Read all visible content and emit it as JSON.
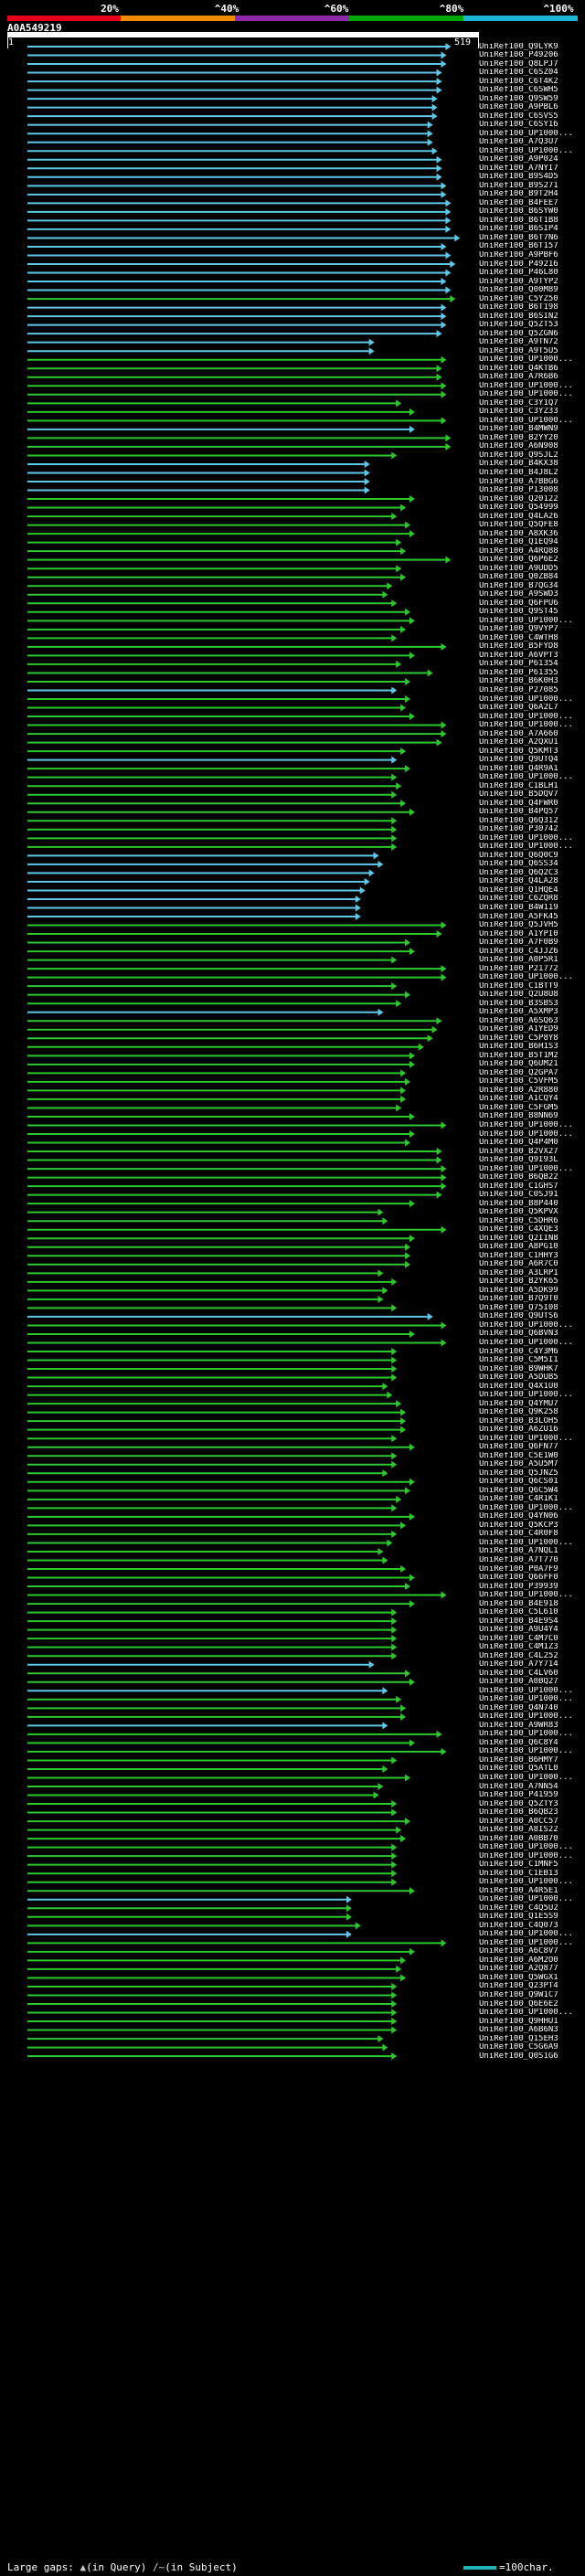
{
  "scale": {
    "labels": [
      "20%",
      "^40%",
      "^60%",
      "^80%",
      "^100%"
    ],
    "colors": [
      "#e8001c",
      "#f08a00",
      "#8e2aa8",
      "#00a800",
      "#1bb6d6"
    ]
  },
  "query": {
    "title": "A0A549219",
    "start": "1",
    "end": "519"
  },
  "footer": {
    "large_gaps_label": "Large gaps:",
    "in_query_mark": "▲",
    "in_query_label": "(in Query)",
    "in_subject_mark": "/~",
    "in_subject_label": "(in Subject)",
    "legend_label": "=100char."
  },
  "colors": {
    "cyan": "#5fc8e8",
    "green": "#2ec82e",
    "legend": "#1fb5b8",
    "ruler": "#ffffff"
  },
  "hits": [
    {
      "id": "UniRef100_Q9LYK9",
      "end": 0.94,
      "c": "cyan"
    },
    {
      "id": "UniRef100_P49206",
      "end": 0.93,
      "c": "cyan"
    },
    {
      "id": "UniRef100_Q8LPJ7",
      "end": 0.93,
      "c": "cyan"
    },
    {
      "id": "UniRef100_C6SZ04",
      "end": 0.92,
      "c": "cyan"
    },
    {
      "id": "UniRef100_C6T4K2",
      "end": 0.92,
      "c": "cyan"
    },
    {
      "id": "UniRef100_C6SWH5",
      "end": 0.92,
      "c": "cyan"
    },
    {
      "id": "UniRef100_Q9SW59",
      "end": 0.91,
      "c": "cyan"
    },
    {
      "id": "UniRef100_A9PBL6",
      "end": 0.91,
      "c": "cyan"
    },
    {
      "id": "UniRef100_C6SVS5",
      "end": 0.91,
      "c": "cyan"
    },
    {
      "id": "UniRef100_C6SY16",
      "end": 0.9,
      "c": "cyan"
    },
    {
      "id": "UniRef100_UP1000...",
      "end": 0.9,
      "c": "cyan"
    },
    {
      "id": "UniRef100_A7Q3U7",
      "end": 0.9,
      "c": "cyan"
    },
    {
      "id": "UniRef100_UP1000...",
      "end": 0.91,
      "c": "cyan"
    },
    {
      "id": "UniRef100_A9P024",
      "end": 0.92,
      "c": "cyan"
    },
    {
      "id": "UniRef100_A7NYI7",
      "end": 0.92,
      "c": "cyan"
    },
    {
      "id": "UniRef100_B9S4D5",
      "end": 0.92,
      "c": "cyan"
    },
    {
      "id": "UniRef100_B9S271",
      "end": 0.93,
      "c": "cyan"
    },
    {
      "id": "UniRef100_B9T2H4",
      "end": 0.93,
      "c": "cyan"
    },
    {
      "id": "UniRef100_B4FEE7",
      "end": 0.94,
      "c": "cyan"
    },
    {
      "id": "UniRef100_B6SYW0",
      "end": 0.94,
      "c": "cyan"
    },
    {
      "id": "UniRef100_B6T1B8",
      "end": 0.94,
      "c": "cyan"
    },
    {
      "id": "UniRef100_B6SIP4",
      "end": 0.94,
      "c": "cyan"
    },
    {
      "id": "UniRef100_B6T7N6",
      "end": 0.96,
      "c": "cyan"
    },
    {
      "id": "UniRef100_B6T157",
      "end": 0.93,
      "c": "cyan"
    },
    {
      "id": "UniRef100_A9PBF6",
      "end": 0.94,
      "c": "cyan"
    },
    {
      "id": "UniRef100_P49216",
      "end": 0.95,
      "c": "cyan"
    },
    {
      "id": "UniRef100_P46L80",
      "end": 0.94,
      "c": "cyan"
    },
    {
      "id": "UniRef100_A9TYP2",
      "end": 0.93,
      "c": "cyan"
    },
    {
      "id": "UniRef100_Q00M89",
      "end": 0.94,
      "c": "cyan"
    },
    {
      "id": "UniRef100_C5YZ50",
      "end": 0.95,
      "c": "green"
    },
    {
      "id": "UniRef100_B6T198",
      "end": 0.93,
      "c": "cyan"
    },
    {
      "id": "UniRef100_B6SIN2",
      "end": 0.93,
      "c": "cyan"
    },
    {
      "id": "UniRef100_Q5ZT53",
      "end": 0.93,
      "c": "cyan"
    },
    {
      "id": "UniRef100_Q5ZGN6",
      "end": 0.92,
      "c": "cyan"
    },
    {
      "id": "UniRef100_A9TN72",
      "end": 0.77,
      "c": "cyan"
    },
    {
      "id": "UniRef100_A9T5U5",
      "end": 0.77,
      "c": "cyan"
    },
    {
      "id": "UniRef100_UP1000...",
      "end": 0.93,
      "c": "green"
    },
    {
      "id": "UniRef100_Q4KTB6",
      "end": 0.92,
      "c": "green"
    },
    {
      "id": "UniRef100_A7R6B6",
      "end": 0.92,
      "c": "green"
    },
    {
      "id": "UniRef100_UP1000...",
      "end": 0.93,
      "c": "green"
    },
    {
      "id": "UniRef100_UP1000...",
      "end": 0.93,
      "c": "green"
    },
    {
      "id": "UniRef100_C3Y1Q7",
      "end": 0.83,
      "c": "green"
    },
    {
      "id": "UniRef100_C3YZ33",
      "end": 0.86,
      "c": "green"
    },
    {
      "id": "UniRef100_UP1000...",
      "end": 0.93,
      "c": "green"
    },
    {
      "id": "UniRef100_B4MWN9",
      "end": 0.86,
      "c": "cyan"
    },
    {
      "id": "UniRef100_B2YY20",
      "end": 0.94,
      "c": "green"
    },
    {
      "id": "UniRef100_A6N908",
      "end": 0.94,
      "c": "green"
    },
    {
      "id": "UniRef100_Q9SJL2",
      "end": 0.82,
      "c": "green"
    },
    {
      "id": "UniRef100_B4KX38",
      "end": 0.76,
      "c": "cyan"
    },
    {
      "id": "UniRef100_B4J8L2",
      "end": 0.76,
      "c": "cyan"
    },
    {
      "id": "UniRef100_A7BBG6",
      "end": 0.76,
      "c": "cyan"
    },
    {
      "id": "UniRef100_P13008",
      "end": 0.76,
      "c": "cyan"
    },
    {
      "id": "UniRef100_Q20122",
      "end": 0.86,
      "c": "green"
    },
    {
      "id": "UniRef100_Q54999",
      "end": 0.84,
      "c": "green"
    },
    {
      "id": "UniRef100_Q4LA26",
      "end": 0.82,
      "c": "green"
    },
    {
      "id": "UniRef100_Q5QFE8",
      "end": 0.85,
      "c": "green"
    },
    {
      "id": "UniRef100_A8XK36",
      "end": 0.86,
      "c": "green"
    },
    {
      "id": "UniRef100_Q1EQ94",
      "end": 0.83,
      "c": "green"
    },
    {
      "id": "UniRef100_A4RQ88",
      "end": 0.84,
      "c": "green"
    },
    {
      "id": "UniRef100_Q6P6E2",
      "end": 0.94,
      "c": "green"
    },
    {
      "id": "UniRef100_A9UDD5",
      "end": 0.83,
      "c": "green"
    },
    {
      "id": "UniRef100_Q0ZB84",
      "end": 0.84,
      "c": "green"
    },
    {
      "id": "UniRef100_B7QG34",
      "end": 0.81,
      "c": "green"
    },
    {
      "id": "UniRef100_A9SWD3",
      "end": 0.8,
      "c": "green"
    },
    {
      "id": "UniRef100_Q6FPU6",
      "end": 0.82,
      "c": "green"
    },
    {
      "id": "UniRef100_Q9ST45",
      "end": 0.85,
      "c": "green"
    },
    {
      "id": "UniRef100_UP1000...",
      "end": 0.86,
      "c": "green"
    },
    {
      "id": "UniRef100_Q9VYP7",
      "end": 0.84,
      "c": "green"
    },
    {
      "id": "UniRef100_C4WTH8",
      "end": 0.82,
      "c": "green"
    },
    {
      "id": "UniRef100_B5FYD8",
      "end": 0.93,
      "c": "green"
    },
    {
      "id": "UniRef100_A6VPT3",
      "end": 0.86,
      "c": "green"
    },
    {
      "id": "UniRef100_P61354",
      "end": 0.83,
      "c": "green"
    },
    {
      "id": "UniRef100_P61355",
      "end": 0.9,
      "c": "green"
    },
    {
      "id": "UniRef100_B6K0H3",
      "end": 0.85,
      "c": "green"
    },
    {
      "id": "UniRef100_P27085",
      "end": 0.82,
      "c": "cyan"
    },
    {
      "id": "UniRef100_UP1000...",
      "end": 0.85,
      "c": "green"
    },
    {
      "id": "UniRef100_Q6A2L7",
      "end": 0.84,
      "c": "green"
    },
    {
      "id": "UniRef100_UP1000...",
      "end": 0.86,
      "c": "green"
    },
    {
      "id": "UniRef100_UP1000...",
      "end": 0.93,
      "c": "green"
    },
    {
      "id": "UniRef100_A7A660",
      "end": 0.93,
      "c": "green"
    },
    {
      "id": "UniRef100_A2QXU1",
      "end": 0.92,
      "c": "green"
    },
    {
      "id": "UniRef100_Q5KMT3",
      "end": 0.84,
      "c": "green"
    },
    {
      "id": "UniRef100_Q9UTQ4",
      "end": 0.82,
      "c": "cyan"
    },
    {
      "id": "UniRef100_Q4R9A1",
      "end": 0.85,
      "c": "green"
    },
    {
      "id": "UniRef100_UP1000...",
      "end": 0.82,
      "c": "green"
    },
    {
      "id": "UniRef100_C1BLH1",
      "end": 0.83,
      "c": "green"
    },
    {
      "id": "UniRef100_B5DQV7",
      "end": 0.82,
      "c": "green"
    },
    {
      "id": "UniRef100_Q4FWR0",
      "end": 0.84,
      "c": "green"
    },
    {
      "id": "UniRef100_B4PQ57",
      "end": 0.86,
      "c": "green"
    },
    {
      "id": "UniRef100_Q6Q312",
      "end": 0.82,
      "c": "green"
    },
    {
      "id": "UniRef100_P30742",
      "end": 0.82,
      "c": "green"
    },
    {
      "id": "UniRef100_UP1000...",
      "end": 0.82,
      "c": "green"
    },
    {
      "id": "UniRef100_UP1000...",
      "end": 0.82,
      "c": "green"
    },
    {
      "id": "UniRef100_Q6Q0C9",
      "end": 0.78,
      "c": "cyan"
    },
    {
      "id": "UniRef100_Q6SS34",
      "end": 0.79,
      "c": "cyan"
    },
    {
      "id": "UniRef100_Q6Q2C3",
      "end": 0.77,
      "c": "cyan"
    },
    {
      "id": "UniRef100_Q4LA28",
      "end": 0.76,
      "c": "cyan"
    },
    {
      "id": "UniRef100_Q1HQE4",
      "end": 0.75,
      "c": "cyan"
    },
    {
      "id": "UniRef100_C6ZQR8",
      "end": 0.74,
      "c": "cyan"
    },
    {
      "id": "UniRef100_B4W119",
      "end": 0.74,
      "c": "cyan"
    },
    {
      "id": "UniRef100_A5FK45",
      "end": 0.74,
      "c": "cyan"
    },
    {
      "id": "UniRef100_Q5JVH5",
      "end": 0.93,
      "c": "green"
    },
    {
      "id": "UniRef100_A1YPI0",
      "end": 0.92,
      "c": "green"
    },
    {
      "id": "UniRef100_A7F0B9",
      "end": 0.85,
      "c": "green"
    },
    {
      "id": "UniRef100_C4JJZ6",
      "end": 0.86,
      "c": "green"
    },
    {
      "id": "UniRef100_A0P5R1",
      "end": 0.82,
      "c": "green"
    },
    {
      "id": "UniRef100_P21772",
      "end": 0.93,
      "c": "green"
    },
    {
      "id": "UniRef100_UP1000...",
      "end": 0.93,
      "c": "green"
    },
    {
      "id": "UniRef100_C1BTT9",
      "end": 0.82,
      "c": "green"
    },
    {
      "id": "UniRef100_Q2U8U8",
      "end": 0.85,
      "c": "green"
    },
    {
      "id": "UniRef100_B3SBS3",
      "end": 0.83,
      "c": "green"
    },
    {
      "id": "UniRef100_A5XMP3",
      "end": 0.79,
      "c": "cyan"
    },
    {
      "id": "UniRef100_A6SQ63",
      "end": 0.92,
      "c": "green"
    },
    {
      "id": "UniRef100_A1YED9",
      "end": 0.91,
      "c": "green"
    },
    {
      "id": "UniRef100_C5P8Y8",
      "end": 0.9,
      "c": "green"
    },
    {
      "id": "UniRef100_B6H1S3",
      "end": 0.88,
      "c": "green"
    },
    {
      "id": "UniRef100_B5T1M2",
      "end": 0.86,
      "c": "green"
    },
    {
      "id": "UniRef100_Q6UM21",
      "end": 0.86,
      "c": "green"
    },
    {
      "id": "UniRef100_Q2GPA7",
      "end": 0.84,
      "c": "green"
    },
    {
      "id": "UniRef100_C5VFM5",
      "end": 0.85,
      "c": "green"
    },
    {
      "id": "UniRef100_A2R880",
      "end": 0.84,
      "c": "green"
    },
    {
      "id": "UniRef100_A1CQY4",
      "end": 0.84,
      "c": "green"
    },
    {
      "id": "UniRef100_C5FGM5",
      "end": 0.83,
      "c": "green"
    },
    {
      "id": "UniRef100_B8NN69",
      "end": 0.86,
      "c": "green"
    },
    {
      "id": "UniRef100_UP1000...",
      "end": 0.93,
      "c": "green"
    },
    {
      "id": "UniRef100_UP1000...",
      "end": 0.86,
      "c": "green"
    },
    {
      "id": "UniRef100_Q4P4M0",
      "end": 0.85,
      "c": "green"
    },
    {
      "id": "UniRef100_B2VX27",
      "end": 0.92,
      "c": "green"
    },
    {
      "id": "UniRef100_Q9I93L",
      "end": 0.92,
      "c": "green"
    },
    {
      "id": "UniRef100_UP1000...",
      "end": 0.93,
      "c": "green"
    },
    {
      "id": "UniRef100_B6QB22",
      "end": 0.93,
      "c": "green"
    },
    {
      "id": "UniRef100_C1GHS7",
      "end": 0.93,
      "c": "green"
    },
    {
      "id": "UniRef100_C0SJ91",
      "end": 0.92,
      "c": "green"
    },
    {
      "id": "UniRef100_B8P440",
      "end": 0.86,
      "c": "green"
    },
    {
      "id": "UniRef100_Q5KPVX",
      "end": 0.79,
      "c": "green"
    },
    {
      "id": "UniRef100_C5DHR6",
      "end": 0.8,
      "c": "green"
    },
    {
      "id": "UniRef100_C4XQE3",
      "end": 0.93,
      "c": "green"
    },
    {
      "id": "UniRef100_Q2IIN8",
      "end": 0.86,
      "c": "green"
    },
    {
      "id": "UniRef100_A8PG10",
      "end": 0.85,
      "c": "green"
    },
    {
      "id": "UniRef100_C1HHY3",
      "end": 0.85,
      "c": "green"
    },
    {
      "id": "UniRef100_A6R7C0",
      "end": 0.85,
      "c": "green"
    },
    {
      "id": "UniRef100_A3LRP1",
      "end": 0.79,
      "c": "green"
    },
    {
      "id": "UniRef100_B2YK65",
      "end": 0.82,
      "c": "green"
    },
    {
      "id": "UniRef100_A5DK99",
      "end": 0.8,
      "c": "green"
    },
    {
      "id": "UniRef100_B7Q9T0",
      "end": 0.79,
      "c": "green"
    },
    {
      "id": "UniRef100_Q75I08",
      "end": 0.82,
      "c": "green"
    },
    {
      "id": "UniRef100_Q9UTS6",
      "end": 0.9,
      "c": "cyan"
    },
    {
      "id": "UniRef100_UP1000...",
      "end": 0.93,
      "c": "green"
    },
    {
      "id": "UniRef100_Q6BVN3",
      "end": 0.86,
      "c": "green"
    },
    {
      "id": "UniRef100_UP1000...",
      "end": 0.93,
      "c": "green"
    },
    {
      "id": "UniRef100_C4Y3M6",
      "end": 0.82,
      "c": "green"
    },
    {
      "id": "UniRef100_C5M5I1",
      "end": 0.82,
      "c": "green"
    },
    {
      "id": "UniRef100_B9WHK7",
      "end": 0.82,
      "c": "green"
    },
    {
      "id": "UniRef100_A5DUB5",
      "end": 0.82,
      "c": "green"
    },
    {
      "id": "UniRef100_Q4X1U0",
      "end": 0.8,
      "c": "green"
    },
    {
      "id": "UniRef100_UP1000...",
      "end": 0.81,
      "c": "green"
    },
    {
      "id": "UniRef100_Q4YMU7",
      "end": 0.83,
      "c": "green"
    },
    {
      "id": "UniRef100_Q9K258",
      "end": 0.84,
      "c": "green"
    },
    {
      "id": "UniRef100_B3LOH5",
      "end": 0.84,
      "c": "green"
    },
    {
      "id": "UniRef100_A6ZU16",
      "end": 0.84,
      "c": "green"
    },
    {
      "id": "UniRef100_UP1000...",
      "end": 0.82,
      "c": "green"
    },
    {
      "id": "UniRef100_Q6FN77",
      "end": 0.86,
      "c": "green"
    },
    {
      "id": "UniRef100_C5E1W0",
      "end": 0.82,
      "c": "green"
    },
    {
      "id": "UniRef100_A5U5M7",
      "end": 0.82,
      "c": "green"
    },
    {
      "id": "UniRef100_Q5JNZ5",
      "end": 0.8,
      "c": "green"
    },
    {
      "id": "UniRef100_Q6CS01",
      "end": 0.86,
      "c": "green"
    },
    {
      "id": "UniRef100_Q6C5W4",
      "end": 0.85,
      "c": "green"
    },
    {
      "id": "UniRef100_C4R1K1",
      "end": 0.83,
      "c": "green"
    },
    {
      "id": "UniRef100_UP1000...",
      "end": 0.82,
      "c": "green"
    },
    {
      "id": "UniRef100_Q4YN06",
      "end": 0.86,
      "c": "green"
    },
    {
      "id": "UniRef100_Q5KCP3",
      "end": 0.84,
      "c": "green"
    },
    {
      "id": "UniRef100_C4R0F8",
      "end": 0.82,
      "c": "green"
    },
    {
      "id": "UniRef100_UP1000...",
      "end": 0.81,
      "c": "green"
    },
    {
      "id": "UniRef100_A7NQL1",
      "end": 0.79,
      "c": "green"
    },
    {
      "id": "UniRef100_A7T770",
      "end": 0.8,
      "c": "green"
    },
    {
      "id": "UniRef100_P0A7F9",
      "end": 0.84,
      "c": "green"
    },
    {
      "id": "UniRef100_Q66FF0",
      "end": 0.86,
      "c": "green"
    },
    {
      "id": "UniRef100_P39939",
      "end": 0.85,
      "c": "green"
    },
    {
      "id": "UniRef100_UP1000...",
      "end": 0.93,
      "c": "green"
    },
    {
      "id": "UniRef100_B4E918",
      "end": 0.86,
      "c": "green"
    },
    {
      "id": "UniRef100_C5L610",
      "end": 0.82,
      "c": "green"
    },
    {
      "id": "UniRef100_B4E9S4",
      "end": 0.82,
      "c": "green"
    },
    {
      "id": "UniRef100_A9U4Y4",
      "end": 0.82,
      "c": "green"
    },
    {
      "id": "UniRef100_C4M7C0",
      "end": 0.82,
      "c": "green"
    },
    {
      "id": "UniRef100_C4M1Z3",
      "end": 0.82,
      "c": "green"
    },
    {
      "id": "UniRef100_C4L252",
      "end": 0.82,
      "c": "green"
    },
    {
      "id": "UniRef100_A7Y714",
      "end": 0.77,
      "c": "cyan"
    },
    {
      "id": "UniRef100_C4LV60",
      "end": 0.85,
      "c": "green"
    },
    {
      "id": "UniRef100_A0BQ27",
      "end": 0.86,
      "c": "green"
    },
    {
      "id": "UniRef100_UP1000...",
      "end": 0.8,
      "c": "cyan"
    },
    {
      "id": "UniRef100_UP1000...",
      "end": 0.83,
      "c": "green"
    },
    {
      "id": "UniRef100_Q4N740",
      "end": 0.84,
      "c": "green"
    },
    {
      "id": "UniRef100_UP1000...",
      "end": 0.84,
      "c": "green"
    },
    {
      "id": "UniRef100_A9WR83",
      "end": 0.8,
      "c": "cyan"
    },
    {
      "id": "UniRef100_UP1000...",
      "end": 0.92,
      "c": "green"
    },
    {
      "id": "UniRef100_Q6C8Y4",
      "end": 0.86,
      "c": "green"
    },
    {
      "id": "UniRef100_UP1000...",
      "end": 0.93,
      "c": "green"
    },
    {
      "id": "UniRef100_B6HMY7",
      "end": 0.82,
      "c": "green"
    },
    {
      "id": "UniRef100_Q5ATL0",
      "end": 0.8,
      "c": "green"
    },
    {
      "id": "UniRef100_UP1000...",
      "end": 0.85,
      "c": "green"
    },
    {
      "id": "UniRef100_A7NN54",
      "end": 0.79,
      "c": "green"
    },
    {
      "id": "UniRef100_P41959",
      "end": 0.78,
      "c": "green"
    },
    {
      "id": "UniRef100_Q5ZTY3",
      "end": 0.82,
      "c": "green"
    },
    {
      "id": "UniRef100_B6QB23",
      "end": 0.82,
      "c": "green"
    },
    {
      "id": "UniRef100_A0CC57",
      "end": 0.85,
      "c": "green"
    },
    {
      "id": "UniRef100_A8IS22",
      "end": 0.83,
      "c": "green"
    },
    {
      "id": "UniRef100_A0BB70",
      "end": 0.84,
      "c": "green"
    },
    {
      "id": "UniRef100_UP1000...",
      "end": 0.82,
      "c": "green"
    },
    {
      "id": "UniRef100_UP1000...",
      "end": 0.82,
      "c": "green"
    },
    {
      "id": "UniRef100_C1MNF5",
      "end": 0.82,
      "c": "green"
    },
    {
      "id": "UniRef100_C1EB13",
      "end": 0.82,
      "c": "green"
    },
    {
      "id": "UniRef100_UP1000...",
      "end": 0.82,
      "c": "green"
    },
    {
      "id": "UniRef100_A4R5E1",
      "end": 0.86,
      "c": "green"
    },
    {
      "id": "UniRef100_UP1000...",
      "end": 0.72,
      "c": "cyan"
    },
    {
      "id": "UniRef100_C4Q5U2",
      "end": 0.72,
      "c": "green"
    },
    {
      "id": "UniRef100_Q1E5S9",
      "end": 0.72,
      "c": "green"
    },
    {
      "id": "UniRef100_C4Q073",
      "end": 0.74,
      "c": "green"
    },
    {
      "id": "UniRef100_UP1000...",
      "end": 0.72,
      "c": "cyan"
    },
    {
      "id": "UniRef100_UP1000...",
      "end": 0.93,
      "c": "green"
    },
    {
      "id": "UniRef100_A6C8V7",
      "end": 0.86,
      "c": "green"
    },
    {
      "id": "UniRef100_A6M2O0",
      "end": 0.84,
      "c": "green"
    },
    {
      "id": "UniRef100_A2Q877",
      "end": 0.83,
      "c": "green"
    },
    {
      "id": "UniRef100_Q5WGX1",
      "end": 0.84,
      "c": "green"
    },
    {
      "id": "UniRef100_Q23PT4",
      "end": 0.82,
      "c": "green"
    },
    {
      "id": "UniRef100_Q9W1C7",
      "end": 0.82,
      "c": "green"
    },
    {
      "id": "UniRef100_Q6E6E2",
      "end": 0.82,
      "c": "green"
    },
    {
      "id": "UniRef100_UP1000...",
      "end": 0.82,
      "c": "green"
    },
    {
      "id": "UniRef100_Q9HHU1",
      "end": 0.82,
      "c": "green"
    },
    {
      "id": "UniRef100_A6B6N3",
      "end": 0.82,
      "c": "green"
    },
    {
      "id": "UniRef100_Q15EH3",
      "end": 0.79,
      "c": "green"
    },
    {
      "id": "UniRef100_C5G6A9",
      "end": 0.8,
      "c": "green"
    },
    {
      "id": "UniRef100_Q0S1G6",
      "end": 0.82,
      "c": "green"
    }
  ]
}
